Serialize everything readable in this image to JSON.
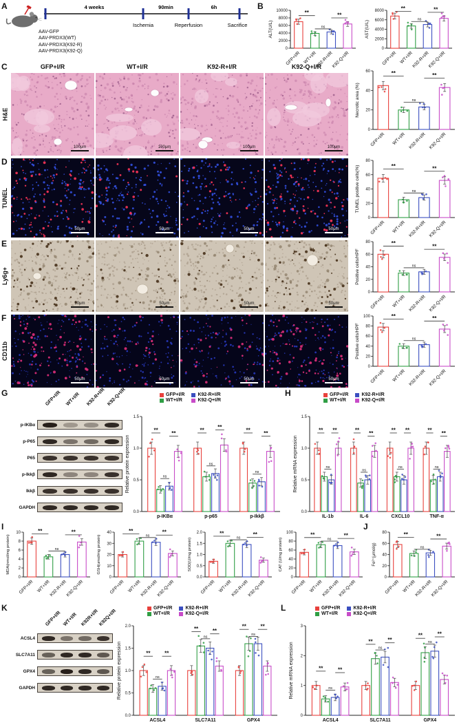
{
  "figure": {
    "panel_labels": {
      "a": "A",
      "b": "B",
      "c": "C",
      "d": "D",
      "e": "E",
      "f": "F",
      "g": "G",
      "h": "H",
      "i": "I",
      "j": "J",
      "k": "K",
      "l": "L"
    }
  },
  "groups": {
    "names": [
      "GFP+I/R",
      "WT+I/R",
      "K92-R+I/R",
      "K92-Q+I/R"
    ],
    "colors": [
      "#e8413c",
      "#2f9e44",
      "#3b4fc0",
      "#c84bc8"
    ]
  },
  "panel_a": {
    "injections": [
      "AAV-GFP",
      "AAV-PRDX3(WT)",
      "AAV-PRDX3(K92-R)",
      "AAV-PRDX3(K92-Q)"
    ],
    "segments": [
      "4 weeks",
      "90min",
      "6h"
    ],
    "events": [
      "Ischemia",
      "Reperfusion",
      "Sacrifice"
    ]
  },
  "histology": {
    "column_headers": [
      "GFP+I/R",
      "WT+I/R",
      "K92-R+I/R",
      "K92-Q+I/R"
    ],
    "rows": [
      {
        "label": "H&E",
        "type": "he",
        "scalebar": "100μm",
        "densities": [
          0.9,
          0.35,
          0.4,
          0.85
        ]
      },
      {
        "label": "TUNEL",
        "type": "tunel",
        "scalebar": "50μm",
        "densities": [
          0.9,
          0.3,
          0.35,
          0.8
        ]
      },
      {
        "label": "Ly6g+",
        "type": "ihc",
        "scalebar": "50μm",
        "densities": [
          0.9,
          0.35,
          0.4,
          0.8
        ]
      },
      {
        "label": "CD11b",
        "type": "cd11b",
        "scalebar": "50μm",
        "densities": [
          0.95,
          0.4,
          0.45,
          0.9
        ]
      }
    ]
  },
  "blots": {
    "g": {
      "lanes": [
        "GFP+I/R",
        "WT+I/R",
        "K92-R+I/R",
        "K92-Q+I/R"
      ],
      "rows": [
        {
          "label": "p-IKBα",
          "bands": [
            0.95,
            0.3,
            0.35,
            0.9
          ]
        },
        {
          "label": "p-P65",
          "bands": [
            0.9,
            0.5,
            0.55,
            0.9
          ]
        },
        {
          "label": "P65",
          "bands": [
            0.85,
            0.85,
            0.85,
            0.85
          ]
        },
        {
          "label": "p-Ikkβ",
          "bands": [
            0.9,
            0.4,
            0.4,
            0.85
          ]
        },
        {
          "label": "Ikkβ",
          "bands": [
            0.85,
            0.85,
            0.85,
            0.85
          ]
        },
        {
          "label": "GAPDH",
          "bands": [
            0.9,
            0.9,
            0.9,
            0.9
          ]
        }
      ]
    },
    "k": {
      "lanes": [
        "GFP+I/R",
        "WT+I/R",
        "K92R+I/R",
        "K92Q+I/R"
      ],
      "rows": [
        {
          "label": "ACSL4",
          "bands": [
            0.9,
            0.5,
            0.55,
            0.85
          ]
        },
        {
          "label": "SLC7A11",
          "bands": [
            0.6,
            0.9,
            0.9,
            0.65
          ]
        },
        {
          "label": "GPX4",
          "bands": [
            0.6,
            0.95,
            0.9,
            0.65
          ]
        },
        {
          "label": "GAPDH",
          "bands": [
            0.9,
            0.9,
            0.9,
            0.9
          ]
        }
      ]
    }
  },
  "chart_data": [
    {
      "id": "alt",
      "type": "bar",
      "panel": "B",
      "ylabel": "ALT(U/L)",
      "ylim": [
        0,
        10000
      ],
      "yticks": [
        "0",
        "2000",
        "4000",
        "6000",
        "8000",
        "10000"
      ],
      "categories": [
        "GFP+I/R",
        "WT+I/R",
        "K92-R+I/R",
        "K92-Q+I/R"
      ],
      "values": [
        7000,
        3900,
        4300,
        6400
      ],
      "sig": [
        "**",
        "ns",
        "**"
      ]
    },
    {
      "id": "ast",
      "type": "bar",
      "panel": "B",
      "ylabel": "AST(U/L)",
      "ylim": [
        0,
        8000
      ],
      "yticks": [
        "0",
        "2000",
        "4000",
        "6000",
        "8000"
      ],
      "categories": [
        "GFP+I/R",
        "WT+I/R",
        "K92-R+I/R",
        "K92-Q+I/R"
      ],
      "values": [
        6800,
        4700,
        5000,
        6300
      ],
      "sig": [
        "**",
        "ns",
        "**"
      ]
    },
    {
      "id": "necrotic",
      "type": "bar",
      "panel": "C",
      "ylabel": "Necrotic area (%)",
      "ylim": [
        0,
        60
      ],
      "yticks": [
        "0",
        "20",
        "40",
        "60"
      ],
      "categories": [
        "GFP+I/R",
        "WT+I/R",
        "K92-R+I/R",
        "K92-Q+I/R"
      ],
      "values": [
        45,
        20,
        23,
        43
      ],
      "sig": [
        "**",
        "ns",
        "**"
      ]
    },
    {
      "id": "tunel",
      "type": "bar",
      "panel": "D",
      "ylabel": "TUNEL positive cells(%)",
      "ylim": [
        0,
        80
      ],
      "yticks": [
        "0",
        "20",
        "40",
        "60",
        "80"
      ],
      "categories": [
        "GFP+I/R",
        "WT+I/R",
        "K92-R+I/R",
        "K92-Q+I/R"
      ],
      "values": [
        55,
        25,
        28,
        52
      ],
      "sig": [
        "**",
        "ns",
        "**"
      ]
    },
    {
      "id": "ly6g",
      "type": "bar",
      "panel": "E",
      "ylabel": "Positive cells/HPF",
      "ylim": [
        0,
        80
      ],
      "yticks": [
        "0",
        "20",
        "40",
        "60",
        "80"
      ],
      "categories": [
        "GFP+I/R",
        "WT+I/R",
        "K92-R+I/R",
        "K92-Q+I/R"
      ],
      "values": [
        60,
        30,
        32,
        55
      ],
      "sig": [
        "**",
        "ns",
        "**"
      ]
    },
    {
      "id": "cd11b",
      "type": "bar",
      "panel": "F",
      "ylabel": "Positive cells/HPF",
      "ylim": [
        0,
        100
      ],
      "yticks": [
        "0",
        "20",
        "40",
        "60",
        "80",
        "100"
      ],
      "categories": [
        "GFP+I/R",
        "WT+I/R",
        "K92-R+I/R",
        "K92-Q+I/R"
      ],
      "values": [
        78,
        40,
        43,
        74
      ],
      "sig": [
        "**",
        "ns",
        "**"
      ]
    },
    {
      "id": "g_protein",
      "type": "grouped_bar",
      "panel": "G",
      "ylabel": "Relative protein expression",
      "ylim": [
        0,
        1.5
      ],
      "yticks": [
        "0.0",
        "0.5",
        "1.0",
        "1.5"
      ],
      "categories": [
        "p-IKBα",
        "p-p65",
        "p-Ikkβ"
      ],
      "series": [
        {
          "name": "GFP+I/R",
          "values": [
            1.0,
            1.0,
            1.0
          ]
        },
        {
          "name": "WT+I/R",
          "values": [
            0.35,
            0.55,
            0.45
          ]
        },
        {
          "name": "K92-R+I/R",
          "values": [
            0.4,
            0.6,
            0.47
          ]
        },
        {
          "name": "K92-Q+I/R",
          "values": [
            0.95,
            1.05,
            0.95
          ]
        }
      ],
      "sig_per_cat": [
        [
          "**",
          "ns",
          "**"
        ],
        [
          "**",
          "ns",
          "**"
        ],
        [
          "**",
          "ns",
          "**"
        ]
      ]
    },
    {
      "id": "h_mrna",
      "type": "grouped_bar",
      "panel": "H",
      "ylabel": "Relative mRNA expression",
      "ylim": [
        0,
        1.5
      ],
      "yticks": [
        "0.0",
        "0.5",
        "1.0",
        "1.5"
      ],
      "categories": [
        "IL-1b",
        "IL-6",
        "CXCL10",
        "TNF-α"
      ],
      "series": [
        {
          "name": "GFP+I/R",
          "values": [
            1.0,
            1.0,
            1.0,
            1.0
          ]
        },
        {
          "name": "WT+I/R",
          "values": [
            0.55,
            0.45,
            0.55,
            0.5
          ]
        },
        {
          "name": "K92-R+I/R",
          "values": [
            0.5,
            0.5,
            0.5,
            0.55
          ]
        },
        {
          "name": "K92-Q+I/R",
          "values": [
            1.0,
            0.95,
            1.0,
            0.95
          ]
        }
      ],
      "sig_per_cat": [
        [
          "**",
          "ns",
          "**"
        ],
        [
          "**",
          "ns",
          "**"
        ],
        [
          "**",
          "ns",
          "**"
        ],
        [
          "**",
          "ns",
          "**"
        ]
      ]
    },
    {
      "id": "mda",
      "type": "bar",
      "panel": "I",
      "ylabel": "MDA(nmol/mg protein)",
      "ylim": [
        0,
        10
      ],
      "yticks": [
        "0",
        "2",
        "4",
        "6",
        "8",
        "10"
      ],
      "categories": [
        "GFP+I/R",
        "WT+I/R",
        "K92-R+I/R",
        "K92-Q+I/R"
      ],
      "values": [
        8,
        4.5,
        5,
        7.8
      ],
      "sig": [
        "**",
        "ns",
        "**"
      ]
    },
    {
      "id": "gsh",
      "type": "bar",
      "panel": "I",
      "ylabel": "GSH(umol/mg protein)",
      "ylim": [
        0,
        40
      ],
      "yticks": [
        "0",
        "10",
        "20",
        "30",
        "40"
      ],
      "categories": [
        "GFP+I/R",
        "WT+I/R",
        "K92-R+I/R",
        "K92-Q+I/R"
      ],
      "values": [
        20,
        32,
        31,
        21
      ],
      "sig": [
        "**",
        "ns",
        "**"
      ]
    },
    {
      "id": "sod",
      "type": "bar",
      "panel": "I",
      "ylabel": "SOD(U/mg protein)",
      "ylim": [
        0,
        2
      ],
      "yticks": [
        "0.0",
        "0.5",
        "1.0",
        "1.5",
        "2.0"
      ],
      "categories": [
        "GFP+I/R",
        "WT+I/R",
        "K92-R+I/R",
        "K92-Q+I/R"
      ],
      "values": [
        0.7,
        1.5,
        1.45,
        0.75
      ],
      "sig": [
        "**",
        "ns",
        "**"
      ]
    },
    {
      "id": "cat",
      "type": "bar",
      "panel": "I",
      "ylabel": "CAT (U/mg protein)",
      "ylim": [
        0,
        100
      ],
      "yticks": [
        "0",
        "20",
        "40",
        "60",
        "80",
        "100"
      ],
      "categories": [
        "GFP+I/R",
        "WT+I/R",
        "K92-R+I/R",
        "K92-Q+I/R"
      ],
      "values": [
        55,
        72,
        70,
        56
      ],
      "sig": [
        "**",
        "ns",
        "**"
      ]
    },
    {
      "id": "fe",
      "type": "bar",
      "panel": "J",
      "ylabel": "Fe²⁺(μmol/g)",
      "ylim": [
        0,
        80
      ],
      "yticks": [
        "0",
        "20",
        "40",
        "60",
        "80"
      ],
      "categories": [
        "GFP+I/R",
        "WT+I/R",
        "K92-R+I/R",
        "K92-Q+I/R"
      ],
      "values": [
        58,
        42,
        43,
        55
      ],
      "sig": [
        "**",
        "ns",
        "**"
      ]
    },
    {
      "id": "k_protein",
      "type": "grouped_bar",
      "panel": "K",
      "ylabel": "Relative protein expression",
      "ylim": [
        0,
        2
      ],
      "yticks": [
        "0.0",
        "0.5",
        "1.0",
        "1.5",
        "2.0"
      ],
      "categories": [
        "ACSL4",
        "SLC7A11",
        "GPX4"
      ],
      "series": [
        {
          "name": "GFP+I/R",
          "values": [
            1.0,
            1.0,
            1.0
          ]
        },
        {
          "name": "WT+I/R",
          "values": [
            0.6,
            1.55,
            1.6
          ]
        },
        {
          "name": "K92-R+I/R",
          "values": [
            0.65,
            1.5,
            1.6
          ]
        },
        {
          "name": "K92-Q+I/R",
          "values": [
            1.0,
            1.1,
            1.1
          ]
        }
      ],
      "sig_per_cat": [
        [
          "**",
          "ns",
          "**"
        ],
        [
          "**",
          "ns",
          "**"
        ],
        [
          "**",
          "ns",
          "**"
        ]
      ]
    },
    {
      "id": "l_mrna",
      "type": "grouped_bar",
      "panel": "L",
      "ylabel": "Relative mRNA expression",
      "ylim": [
        0,
        3
      ],
      "yticks": [
        "0",
        "1",
        "2",
        "3"
      ],
      "categories": [
        "ACSL4",
        "SLC7A11",
        "GPX4"
      ],
      "series": [
        {
          "name": "GFP+I/R",
          "values": [
            1.0,
            1.0,
            1.0
          ]
        },
        {
          "name": "WT+I/R",
          "values": [
            0.55,
            1.9,
            2.1
          ]
        },
        {
          "name": "K92-R+I/R",
          "values": [
            0.6,
            1.95,
            2.15
          ]
        },
        {
          "name": "K92-Q+I/R",
          "values": [
            0.95,
            1.1,
            1.2
          ]
        }
      ],
      "sig_per_cat": [
        [
          "**",
          "ns",
          "**"
        ],
        [
          "**",
          "ns",
          "**"
        ],
        [
          "**",
          "ns",
          "**"
        ]
      ]
    }
  ]
}
